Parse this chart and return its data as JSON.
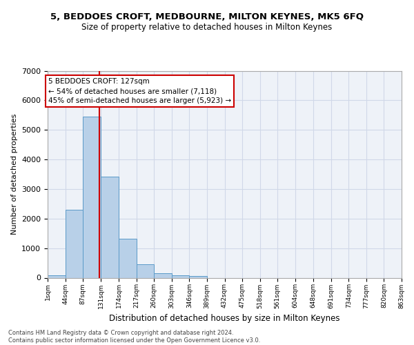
{
  "title": "5, BEDDOES CROFT, MEDBOURNE, MILTON KEYNES, MK5 6FQ",
  "subtitle": "Size of property relative to detached houses in Milton Keynes",
  "xlabel": "Distribution of detached houses by size in Milton Keynes",
  "ylabel": "Number of detached properties",
  "bar_values": [
    80,
    2300,
    5450,
    3430,
    1310,
    460,
    155,
    90,
    60,
    0,
    0,
    0,
    0,
    0,
    0,
    0,
    0,
    0,
    0,
    0
  ],
  "bin_edges": [
    1,
    44,
    87,
    131,
    174,
    217,
    260,
    303,
    346,
    389,
    432,
    475,
    518,
    561,
    604,
    648,
    691,
    734,
    777,
    820,
    863
  ],
  "tick_labels": [
    "1sqm",
    "44sqm",
    "87sqm",
    "131sqm",
    "174sqm",
    "217sqm",
    "260sqm",
    "303sqm",
    "346sqm",
    "389sqm",
    "432sqm",
    "475sqm",
    "518sqm",
    "561sqm",
    "604sqm",
    "648sqm",
    "691sqm",
    "734sqm",
    "777sqm",
    "820sqm",
    "863sqm"
  ],
  "bar_color": "#b8d0e8",
  "bar_edge_color": "#5a9ac8",
  "vline_x": 127,
  "vline_color": "#cc0000",
  "annotation_text": "5 BEDDOES CROFT: 127sqm\n← 54% of detached houses are smaller (7,118)\n45% of semi-detached houses are larger (5,923) →",
  "annotation_box_color": "#ffffff",
  "annotation_box_edge": "#cc0000",
  "ylim": [
    0,
    7000
  ],
  "yticks": [
    0,
    1000,
    2000,
    3000,
    4000,
    5000,
    6000,
    7000
  ],
  "grid_color": "#d0d8e8",
  "bg_color": "#eef2f8",
  "footer": "Contains HM Land Registry data © Crown copyright and database right 2024.\nContains public sector information licensed under the Open Government Licence v3.0."
}
